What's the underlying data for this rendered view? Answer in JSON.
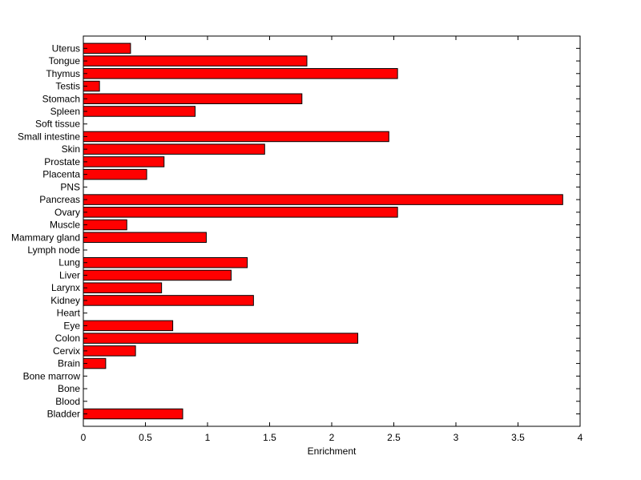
{
  "chart_data": {
    "type": "bar",
    "orientation": "horizontal",
    "title": "",
    "xlabel": "Enrichment",
    "ylabel": "",
    "xlim": [
      0,
      4
    ],
    "xticks": [
      0,
      0.5,
      1,
      1.5,
      2,
      2.5,
      3,
      3.5,
      4
    ],
    "xtick_labels": [
      "0",
      "0.5",
      "1",
      "1.5",
      "2",
      "2.5",
      "3",
      "3.5",
      "4"
    ],
    "bar_color": "#ff0000",
    "edge_color": "#000000",
    "grid": false,
    "categories": [
      "Bladder",
      "Blood",
      "Bone",
      "Bone marrow",
      "Brain",
      "Cervix",
      "Colon",
      "Eye",
      "Heart",
      "Kidney",
      "Larynx",
      "Liver",
      "Lung",
      "Lymph node",
      "Mammary gland",
      "Muscle",
      "Ovary",
      "Pancreas",
      "PNS",
      "Placenta",
      "Prostate",
      "Skin",
      "Small intestine",
      "Soft tissue",
      "Spleen",
      "Stomach",
      "Testis",
      "Thymus",
      "Tongue",
      "Uterus"
    ],
    "values": [
      0.8,
      0,
      0,
      0,
      0.18,
      0.42,
      2.21,
      0.72,
      0,
      1.37,
      0.63,
      1.19,
      1.32,
      0,
      0.99,
      0.35,
      2.53,
      3.86,
      0,
      0.51,
      0.65,
      1.46,
      2.46,
      0,
      0.9,
      1.76,
      0.13,
      2.53,
      1.8,
      0.38
    ]
  }
}
